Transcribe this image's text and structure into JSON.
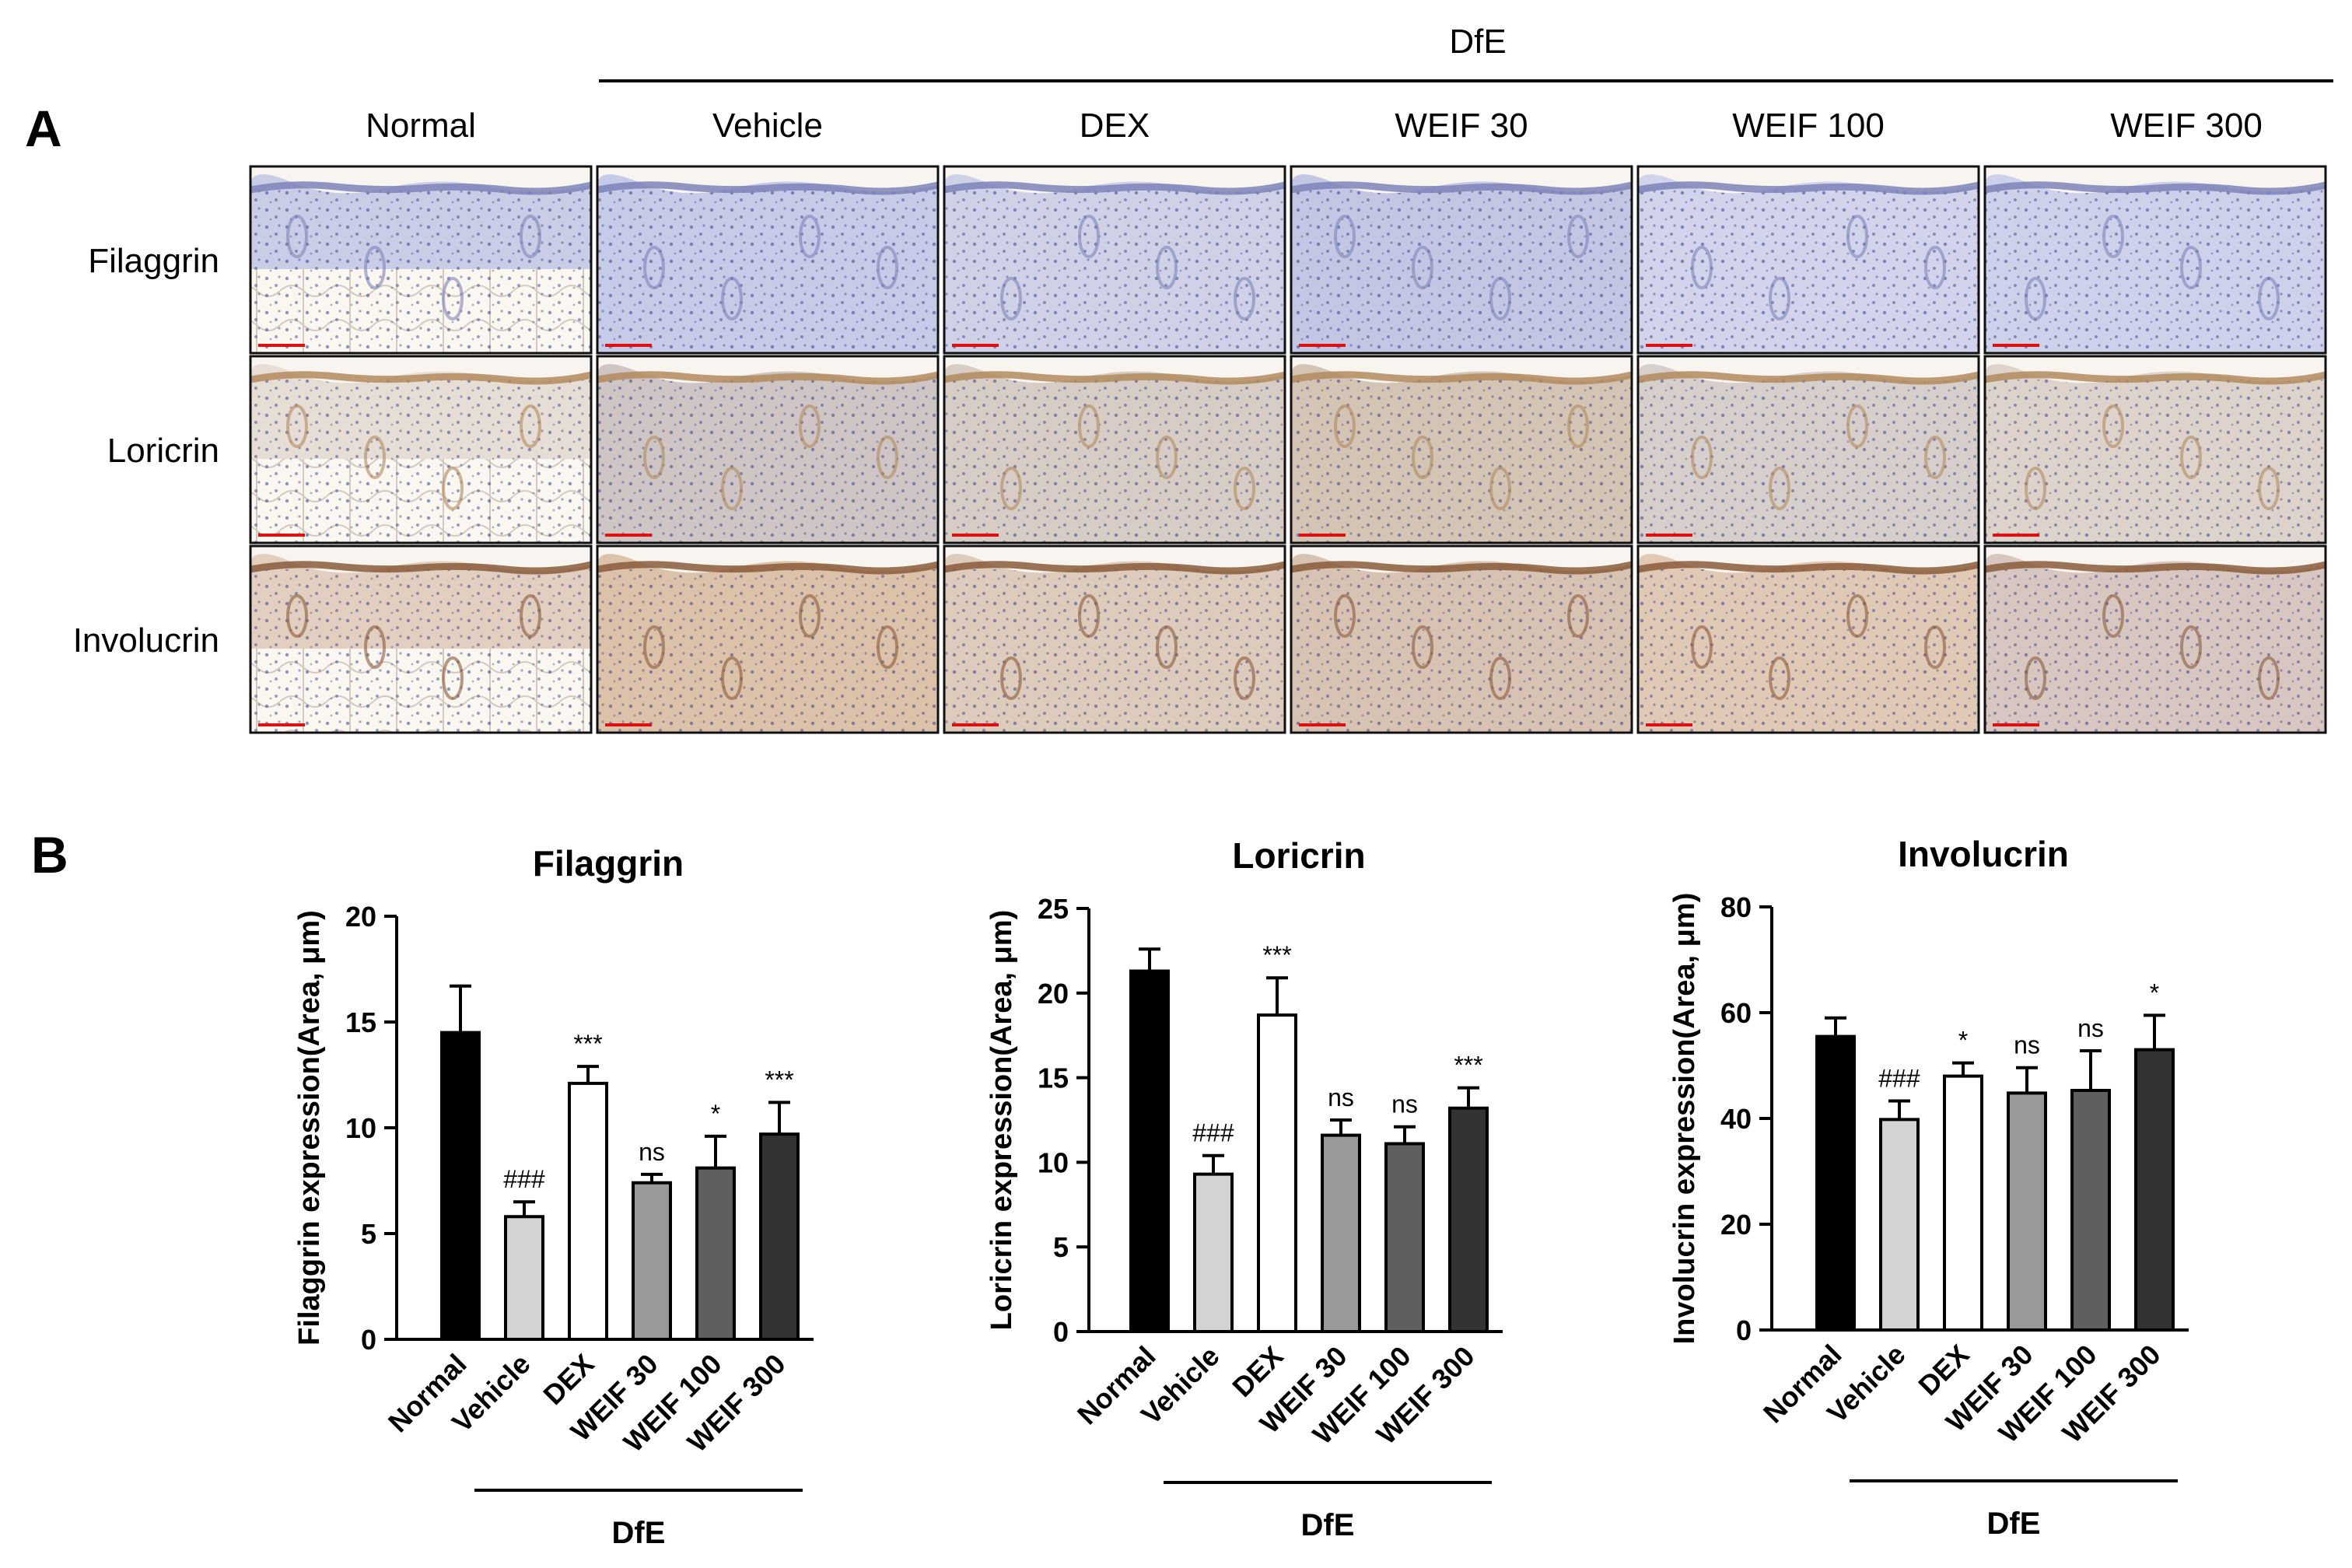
{
  "panel_a": {
    "letter": "A",
    "group_label": "DfE",
    "columns": [
      "Normal",
      "Vehicle",
      "DEX",
      "WEIF 30",
      "WEIF 100",
      "WEIF 300"
    ],
    "rows": [
      "Filaggrin",
      "Loricrin",
      "Involucrin"
    ]
  },
  "panel_b": {
    "letter": "B",
    "group_label": "DfE"
  },
  "colors": {
    "normal": "#000000",
    "vehicle": "#d3d3d3",
    "dex": "#ffffff",
    "weif30": "#999999",
    "weif100": "#5f5f5f",
    "weif300": "#333333"
  },
  "chart_data": [
    {
      "type": "bar",
      "title": "Filaggrin",
      "ylabel": "Filaggrin expression(Area, μm)",
      "categories": [
        "Normal",
        "Vehicle",
        "DEX",
        "WEIF 30",
        "WEIF 100",
        "WEIF 300"
      ],
      "values": [
        14.5,
        5.8,
        12.1,
        7.4,
        8.1,
        9.7
      ],
      "errors": [
        2.2,
        0.7,
        0.8,
        0.4,
        1.5,
        1.5
      ],
      "annotations": [
        "",
        "###",
        "***",
        "ns",
        "*",
        "***"
      ],
      "ylim": [
        0,
        20
      ],
      "yticks": [
        0,
        5,
        10,
        15,
        20
      ]
    },
    {
      "type": "bar",
      "title": "Loricrin",
      "ylabel": "Loricrin expression(Area, μm)",
      "categories": [
        "Normal",
        "Vehicle",
        "DEX",
        "WEIF 30",
        "WEIF 100",
        "WEIF 300"
      ],
      "values": [
        21.3,
        9.3,
        18.7,
        11.6,
        11.1,
        13.2
      ],
      "errors": [
        1.3,
        1.1,
        2.2,
        0.9,
        1.0,
        1.2
      ],
      "annotations": [
        "",
        "###",
        "***",
        "ns",
        "ns",
        "***"
      ],
      "ylim": [
        0,
        25
      ],
      "yticks": [
        0,
        5,
        10,
        15,
        20,
        25
      ]
    },
    {
      "type": "bar",
      "title": "Involucrin",
      "ylabel": "Involucrin expression(Area, μm)",
      "categories": [
        "Normal",
        "Vehicle",
        "DEX",
        "WEIF 30",
        "WEIF 100",
        "WEIF 300"
      ],
      "values": [
        55.5,
        39.8,
        48.0,
        44.8,
        45.3,
        53.0
      ],
      "errors": [
        3.5,
        3.5,
        2.5,
        4.8,
        7.5,
        6.5
      ],
      "annotations": [
        "",
        "###",
        "*",
        "ns",
        "ns",
        "*"
      ],
      "ylim": [
        0,
        80
      ],
      "yticks": [
        0,
        20,
        40,
        60,
        80
      ]
    }
  ]
}
